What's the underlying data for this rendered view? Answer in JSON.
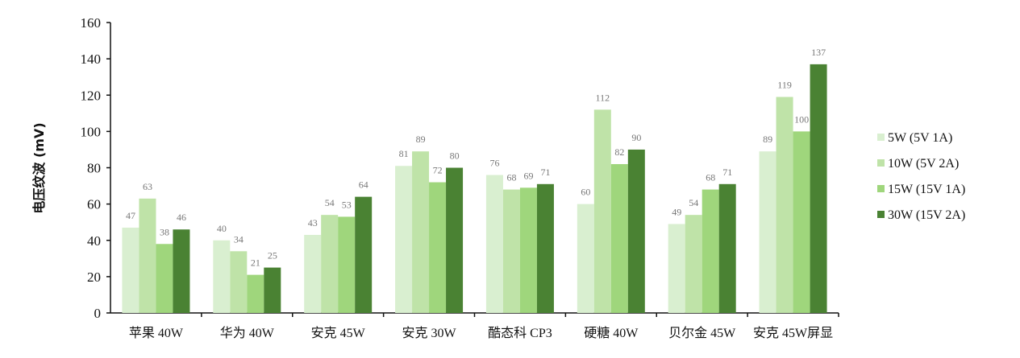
{
  "chart_data": {
    "type": "bar",
    "title": "",
    "xlabel": "",
    "ylabel": "电压纹波 (mV)",
    "ylim": [
      0,
      160
    ],
    "yticks": [
      0,
      20,
      40,
      60,
      80,
      100,
      120,
      140,
      160
    ],
    "grid": false,
    "legend_position": "right",
    "categories": [
      "苹果 40W",
      "华为 40W",
      "安克 45W",
      "安克 30W",
      "酷态科 CP3",
      "硬糖 40W",
      "贝尔金 45W",
      "安克 45W屏显"
    ],
    "series": [
      {
        "name": "5W (5V 1A)",
        "color": "#d9efd0",
        "values": [
          47,
          40,
          43,
          81,
          76,
          60,
          49,
          89
        ]
      },
      {
        "name": "10W (5V 2A)",
        "color": "#bfe3a8",
        "values": [
          63,
          34,
          54,
          89,
          68,
          112,
          54,
          119
        ]
      },
      {
        "name": "15W (15V 1A)",
        "color": "#9fd67c",
        "values": [
          38,
          21,
          53,
          72,
          69,
          82,
          68,
          100
        ]
      },
      {
        "name": "30W (15V 2A)",
        "color": "#4a8233",
        "values": [
          46,
          25,
          64,
          80,
          71,
          90,
          71,
          137
        ]
      }
    ]
  }
}
